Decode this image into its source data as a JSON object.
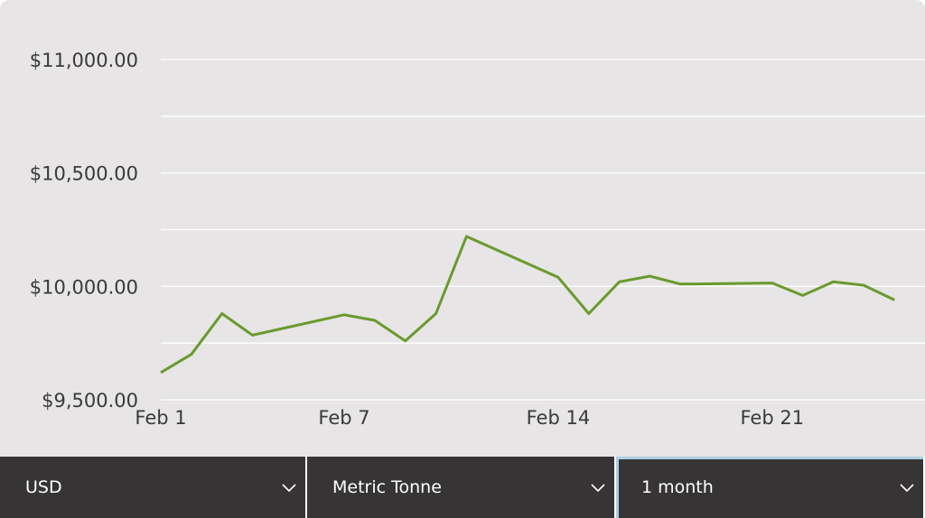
{
  "chart_data": {
    "type": "line",
    "x": [
      "Feb 1",
      "Feb 2",
      "Feb 3",
      "Feb 4",
      "Feb 7",
      "Feb 8",
      "Feb 9",
      "Feb 10",
      "Feb 11",
      "Feb 14",
      "Feb 15",
      "Feb 16",
      "Feb 17",
      "Feb 18",
      "Feb 21",
      "Feb 22",
      "Feb 23",
      "Feb 24",
      "Feb 25"
    ],
    "series": [
      {
        "values": [
          9620,
          9700,
          9880,
          9785,
          9875,
          9850,
          9760,
          9880,
          10220,
          10040,
          9880,
          10020,
          10045,
          10010,
          10015,
          9960,
          10020,
          10005,
          9940
        ],
        "color": "#6a9a2e"
      }
    ],
    "x_tick_labels": [
      "Feb 1",
      "Feb 7",
      "Feb 14",
      "Feb 21"
    ],
    "y_tick_labels": [
      "$9,500.00",
      "$10,000.00",
      "$10,500.00",
      "$11,000.00"
    ],
    "y_ticks": [
      9500,
      10000,
      10500,
      11000
    ],
    "ylim": [
      9500,
      11000
    ],
    "grid": true,
    "gridline_values": [
      9500,
      9750,
      10000,
      10250,
      10500,
      10750,
      11000
    ],
    "title": "",
    "xlabel": "",
    "ylabel": ""
  },
  "controls": {
    "currency": "USD",
    "unit": "Metric Tonne",
    "period": "1 month"
  },
  "icons": {
    "dropdown": "chevron-down-icon"
  }
}
